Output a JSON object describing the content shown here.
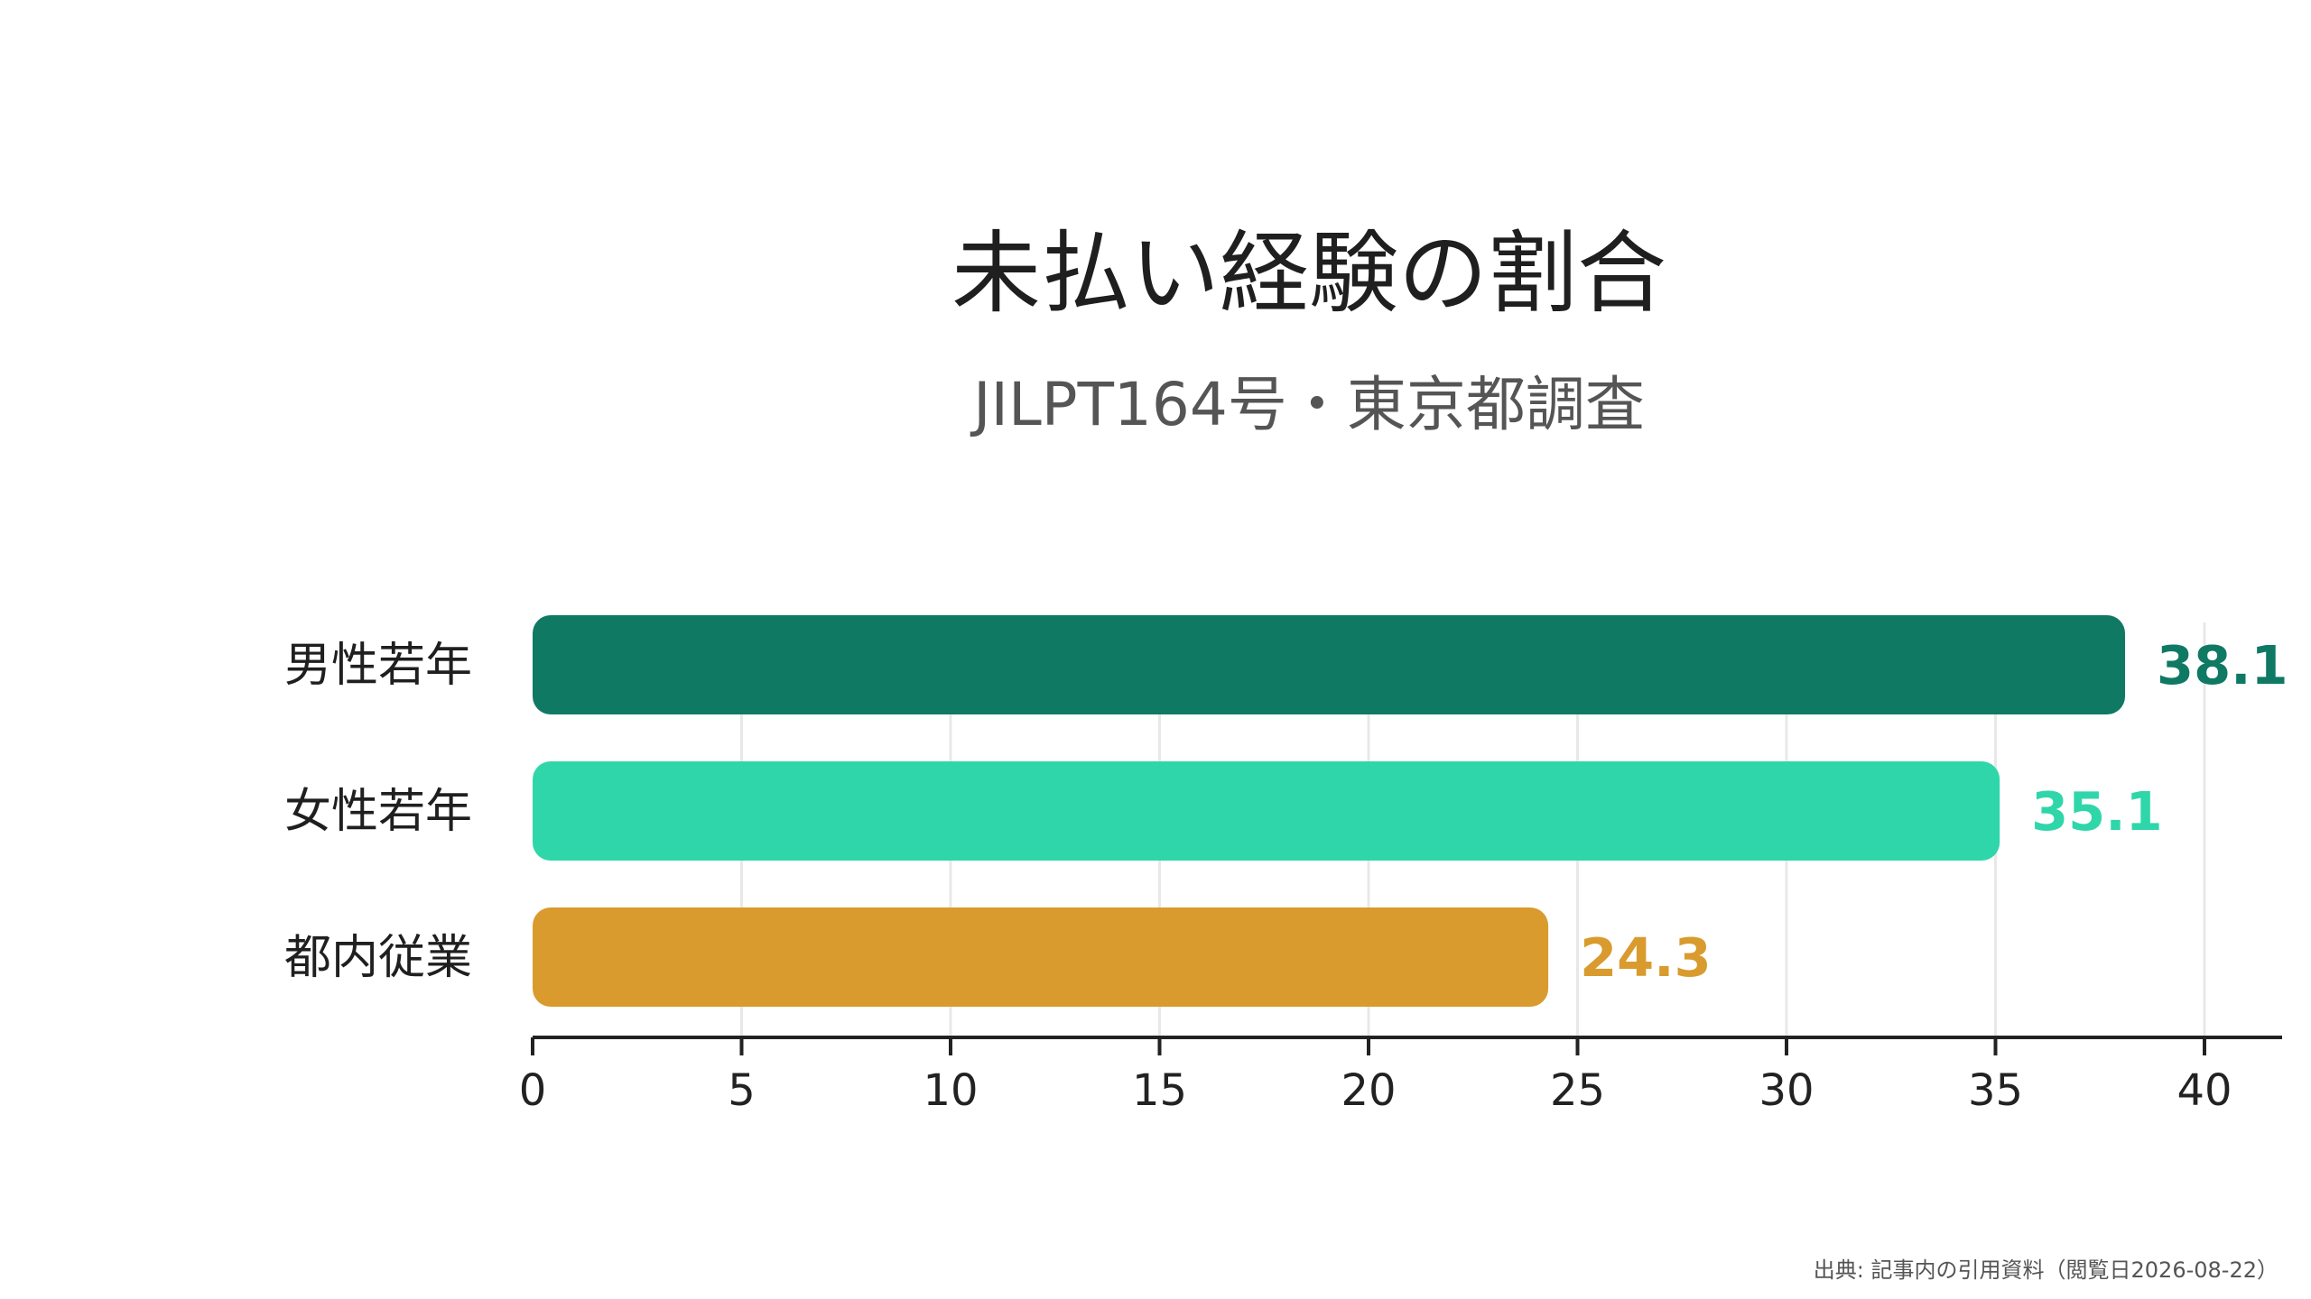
{
  "chart_data": {
    "type": "bar",
    "orientation": "horizontal",
    "title": "未払い経験の割合",
    "subtitle": "JILPT164号・東京都調査",
    "categories": [
      "男性若年",
      "女性若年",
      "都内従業"
    ],
    "values": [
      38.1,
      35.1,
      24.3
    ],
    "value_labels": [
      "38.1",
      "35.1",
      "24.3"
    ],
    "colors": [
      "#0f7964",
      "#2fd6a9",
      "#d99b2e"
    ],
    "xlim": [
      0,
      40
    ],
    "xticks": [
      0,
      5,
      10,
      15,
      20,
      25,
      30,
      35,
      40
    ],
    "xtick_labels": [
      "0",
      "5",
      "10",
      "15",
      "20",
      "25",
      "30",
      "35",
      "40"
    ],
    "grid": true,
    "source": "出典: 記事内の引用資料（閲覧日2026-08-22）"
  }
}
